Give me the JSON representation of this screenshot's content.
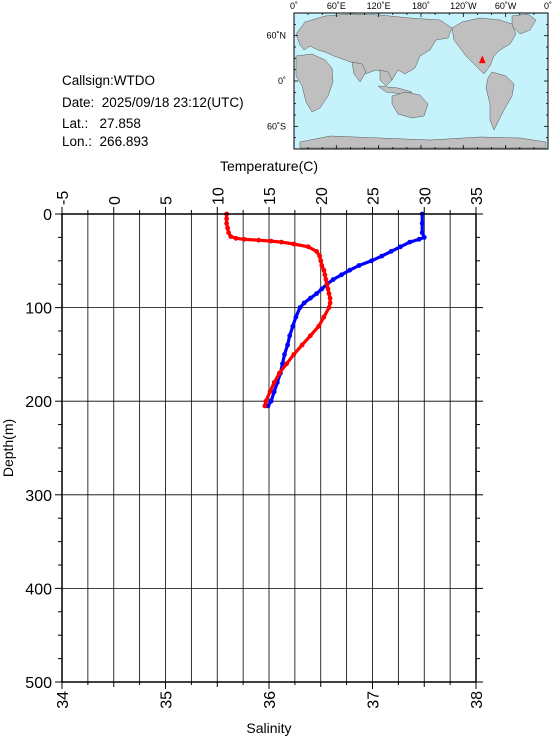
{
  "meta": {
    "callsign_label": "Callsign:",
    "callsign": "WTDO",
    "date_label": "Date:",
    "date": "2025/09/18 23:12(UTC)",
    "lat_label": "Lat.:",
    "lat": "27.858",
    "lon_label": "Lon.:",
    "lon": "266.893"
  },
  "map": {
    "top_labels": [
      "0˚",
      "60˚E",
      "120˚E",
      "180˚",
      "120˚W",
      "60˚W",
      "0˚"
    ],
    "lat_labels": [
      "60˚N",
      "0˚",
      "60˚S"
    ],
    "ocean_color": "#c6f3fb",
    "land_color": "#bfbfbf",
    "marker_color": "#ff0000",
    "marker_lat": 27.858,
    "marker_lon": 266.893
  },
  "chart_data": {
    "type": "line",
    "ylabel": "Depth(m)",
    "ylim": [
      0,
      500
    ],
    "yticks": [
      "0",
      "100",
      "200",
      "300",
      "400",
      "500"
    ],
    "temperature_axis": {
      "label": "Temperature(C)",
      "range": [
        -5,
        35
      ],
      "ticks": [
        "-5",
        "0",
        "5",
        "10",
        "15",
        "20",
        "25",
        "30",
        "35"
      ]
    },
    "salinity_axis": {
      "label": "Salinity",
      "range": [
        34,
        38
      ],
      "ticks": [
        "34",
        "35",
        "36",
        "37",
        "38"
      ]
    },
    "grid": true,
    "series": [
      {
        "axis": "temperature",
        "color": "#0000ff",
        "depth": [
          0,
          10,
          20,
          25,
          27,
          30,
          35,
          40,
          45,
          50,
          55,
          60,
          65,
          70,
          75,
          80,
          85,
          90,
          95,
          100,
          110,
          120,
          130,
          140,
          150,
          160,
          170,
          180,
          190,
          200,
          205
        ],
        "values": [
          29.8,
          29.8,
          29.8,
          30.0,
          29.5,
          28.6,
          27.7,
          26.8,
          25.9,
          24.9,
          23.7,
          22.8,
          22.0,
          21.2,
          20.6,
          20.1,
          19.6,
          19.0,
          18.4,
          18.0,
          17.6,
          17.3,
          17.0,
          16.8,
          16.5,
          16.3,
          16.1,
          15.8,
          15.5,
          15.2,
          14.9
        ]
      },
      {
        "axis": "salinity",
        "color": "#ff0000",
        "depth": [
          0,
          5,
          10,
          15,
          20,
          24,
          26,
          27,
          28,
          29,
          30,
          32,
          35,
          40,
          45,
          50,
          55,
          60,
          65,
          70,
          75,
          80,
          85,
          90,
          95,
          100,
          110,
          120,
          130,
          140,
          150,
          160,
          170,
          180,
          190,
          200,
          205
        ],
        "values": [
          35.59,
          35.59,
          35.59,
          35.6,
          35.61,
          35.63,
          35.68,
          35.76,
          35.9,
          36.02,
          36.12,
          36.24,
          36.38,
          36.46,
          36.49,
          36.5,
          36.51,
          36.53,
          36.54,
          36.55,
          36.56,
          36.57,
          36.58,
          36.59,
          36.59,
          36.58,
          36.53,
          36.48,
          36.4,
          36.32,
          36.24,
          36.17,
          36.1,
          36.05,
          36.01,
          35.97,
          35.96
        ]
      }
    ]
  }
}
